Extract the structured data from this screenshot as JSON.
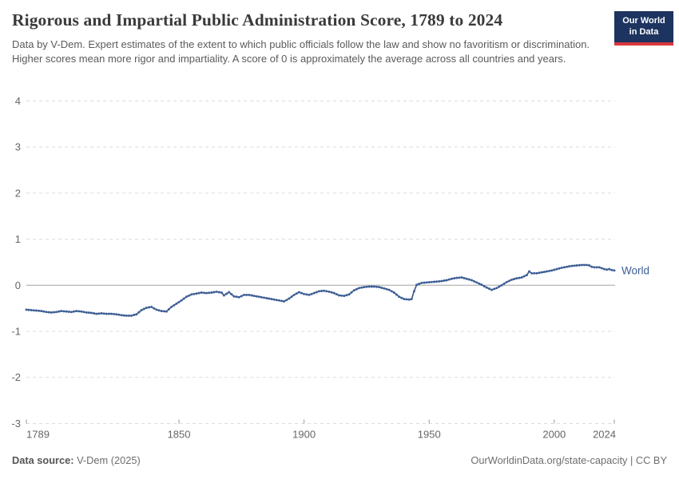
{
  "header": {
    "title": "Rigorous and Impartial Public Administration Score, 1789 to 2024",
    "subtitle": "Data by V-Dem. Expert estimates of the extent to which public officials follow the law and show no favoritism or discrimination. Higher scores mean more rigor and impartiality. A score of 0 is approximately the average across all countries and years.",
    "logo": {
      "line1": "Our World",
      "line2": "in Data",
      "bg_color": "#1d3460",
      "accent_color": "#d7373e"
    }
  },
  "chart_data": {
    "type": "line",
    "title": "Rigorous and Impartial Public Administration Score, 1789 to 2024",
    "xlabel": "",
    "ylabel": "",
    "xlim": [
      1789,
      2024
    ],
    "ylim": [
      -3,
      4
    ],
    "yticks": [
      4,
      3,
      2,
      1,
      0,
      -1,
      -2,
      -3
    ],
    "xticks": [
      1789,
      1850,
      1900,
      1950,
      2000,
      2024
    ],
    "grid": "dashed-horizontal",
    "zero_line": true,
    "legend_position": "end-of-line",
    "colors": {
      "grid": "#dcdcdc",
      "zero_line": "#a3a3a3",
      "axis_text": "#666666",
      "tick": "#999999"
    },
    "series": [
      {
        "name": "World",
        "color": "#3d5e95",
        "points": [
          [
            1789,
            -0.53
          ],
          [
            1791,
            -0.54
          ],
          [
            1793,
            -0.55
          ],
          [
            1795,
            -0.56
          ],
          [
            1797,
            -0.58
          ],
          [
            1799,
            -0.59
          ],
          [
            1801,
            -0.58
          ],
          [
            1803,
            -0.56
          ],
          [
            1805,
            -0.57
          ],
          [
            1807,
            -0.58
          ],
          [
            1809,
            -0.56
          ],
          [
            1811,
            -0.57
          ],
          [
            1813,
            -0.59
          ],
          [
            1815,
            -0.6
          ],
          [
            1817,
            -0.62
          ],
          [
            1819,
            -0.61
          ],
          [
            1821,
            -0.62
          ],
          [
            1823,
            -0.62
          ],
          [
            1825,
            -0.63
          ],
          [
            1827,
            -0.65
          ],
          [
            1829,
            -0.66
          ],
          [
            1831,
            -0.66
          ],
          [
            1833,
            -0.63
          ],
          [
            1835,
            -0.54
          ],
          [
            1837,
            -0.49
          ],
          [
            1839,
            -0.47
          ],
          [
            1841,
            -0.53
          ],
          [
            1843,
            -0.56
          ],
          [
            1845,
            -0.57
          ],
          [
            1847,
            -0.47
          ],
          [
            1849,
            -0.4
          ],
          [
            1851,
            -0.33
          ],
          [
            1853,
            -0.25
          ],
          [
            1855,
            -0.2
          ],
          [
            1857,
            -0.18
          ],
          [
            1859,
            -0.16
          ],
          [
            1861,
            -0.17
          ],
          [
            1863,
            -0.16
          ],
          [
            1865,
            -0.14
          ],
          [
            1867,
            -0.16
          ],
          [
            1868,
            -0.22
          ],
          [
            1870,
            -0.15
          ],
          [
            1872,
            -0.24
          ],
          [
            1874,
            -0.26
          ],
          [
            1876,
            -0.21
          ],
          [
            1878,
            -0.21
          ],
          [
            1880,
            -0.23
          ],
          [
            1882,
            -0.25
          ],
          [
            1884,
            -0.27
          ],
          [
            1886,
            -0.29
          ],
          [
            1888,
            -0.31
          ],
          [
            1890,
            -0.33
          ],
          [
            1892,
            -0.35
          ],
          [
            1894,
            -0.29
          ],
          [
            1896,
            -0.21
          ],
          [
            1898,
            -0.15
          ],
          [
            1900,
            -0.19
          ],
          [
            1902,
            -0.21
          ],
          [
            1904,
            -0.17
          ],
          [
            1906,
            -0.13
          ],
          [
            1908,
            -0.12
          ],
          [
            1910,
            -0.14
          ],
          [
            1912,
            -0.17
          ],
          [
            1914,
            -0.22
          ],
          [
            1916,
            -0.23
          ],
          [
            1918,
            -0.2
          ],
          [
            1920,
            -0.11
          ],
          [
            1922,
            -0.06
          ],
          [
            1924,
            -0.04
          ],
          [
            1926,
            -0.03
          ],
          [
            1928,
            -0.03
          ],
          [
            1930,
            -0.04
          ],
          [
            1932,
            -0.07
          ],
          [
            1934,
            -0.1
          ],
          [
            1936,
            -0.16
          ],
          [
            1938,
            -0.25
          ],
          [
            1940,
            -0.3
          ],
          [
            1942,
            -0.31
          ],
          [
            1943,
            -0.3
          ],
          [
            1944,
            -0.13
          ],
          [
            1945,
            0.01
          ],
          [
            1947,
            0.05
          ],
          [
            1949,
            0.06
          ],
          [
            1951,
            0.07
          ],
          [
            1953,
            0.08
          ],
          [
            1955,
            0.09
          ],
          [
            1957,
            0.11
          ],
          [
            1959,
            0.14
          ],
          [
            1961,
            0.16
          ],
          [
            1963,
            0.17
          ],
          [
            1965,
            0.14
          ],
          [
            1967,
            0.11
          ],
          [
            1969,
            0.06
          ],
          [
            1971,
            0.01
          ],
          [
            1973,
            -0.05
          ],
          [
            1975,
            -0.1
          ],
          [
            1977,
            -0.06
          ],
          [
            1979,
            0.0
          ],
          [
            1981,
            0.07
          ],
          [
            1983,
            0.12
          ],
          [
            1985,
            0.15
          ],
          [
            1987,
            0.17
          ],
          [
            1989,
            0.22
          ],
          [
            1990,
            0.3
          ],
          [
            1991,
            0.26
          ],
          [
            1993,
            0.26
          ],
          [
            1995,
            0.28
          ],
          [
            1997,
            0.3
          ],
          [
            1999,
            0.32
          ],
          [
            2001,
            0.35
          ],
          [
            2003,
            0.38
          ],
          [
            2005,
            0.4
          ],
          [
            2007,
            0.42
          ],
          [
            2009,
            0.43
          ],
          [
            2011,
            0.44
          ],
          [
            2013,
            0.44
          ],
          [
            2014,
            0.43
          ],
          [
            2015,
            0.4
          ],
          [
            2016,
            0.39
          ],
          [
            2017,
            0.39
          ],
          [
            2018,
            0.39
          ],
          [
            2019,
            0.37
          ],
          [
            2020,
            0.35
          ],
          [
            2021,
            0.34
          ],
          [
            2022,
            0.35
          ],
          [
            2023,
            0.33
          ],
          [
            2024,
            0.32
          ]
        ]
      }
    ]
  },
  "footer": {
    "source_label": "Data source:",
    "source_value": " V-Dem (2025)",
    "credit": "OurWorldinData.org/state-capacity | CC BY"
  }
}
